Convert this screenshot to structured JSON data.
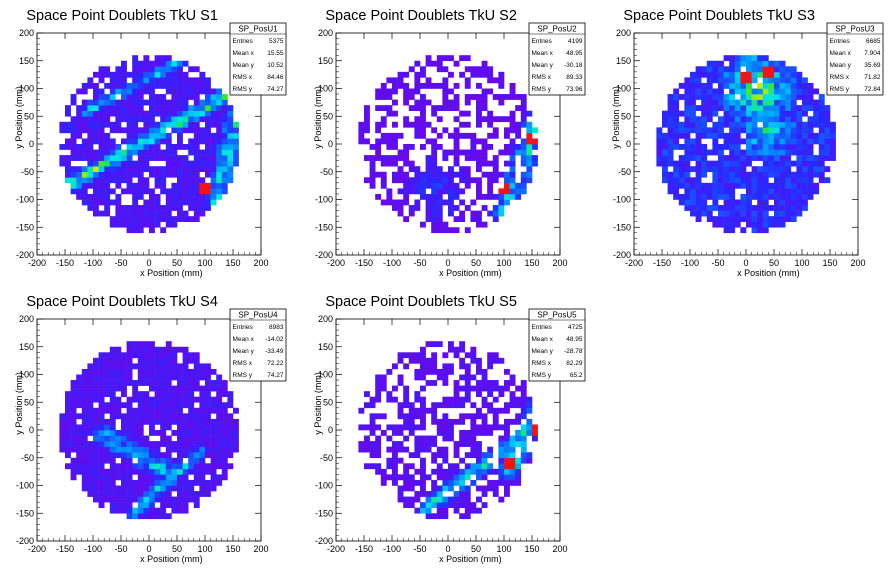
{
  "figure": {
    "panels": [
      {
        "title": "Space Point Doublets TkU S1",
        "stats": {
          "name": "SP_PosU1",
          "rows": [
            [
              "Entries",
              "5375"
            ],
            [
              "Mean x",
              "15.55"
            ],
            [
              "Mean y",
              "10.52"
            ],
            [
              "RMS x",
              "84.46"
            ],
            [
              "RMS y",
              "74.27"
            ]
          ]
        }
      },
      {
        "title": "Space Point Doublets TkU S2",
        "stats": {
          "name": "SP_PosU2",
          "rows": [
            [
              "Entries",
              "4199"
            ],
            [
              "Mean x",
              "48.95"
            ],
            [
              "Mean y",
              "-30.18"
            ],
            [
              "RMS x",
              "89.33"
            ],
            [
              "RMS y",
              "73.96"
            ]
          ]
        }
      },
      {
        "title": "Space Point Doublets TkU S3",
        "stats": {
          "name": "SP_PosU3",
          "rows": [
            [
              "Entries",
              "6685"
            ],
            [
              "Mean x",
              "7.904"
            ],
            [
              "Mean y",
              "35.69"
            ],
            [
              "RMS x",
              "71.82"
            ],
            [
              "RMS y",
              "72.84"
            ]
          ]
        }
      },
      {
        "title": "Space Point Doublets TkU S4",
        "stats": {
          "name": "SP_PosU4",
          "rows": [
            [
              "Entries",
              "8983"
            ],
            [
              "Mean x",
              "-14.02"
            ],
            [
              "Mean y",
              "-33.49"
            ],
            [
              "RMS x",
              "72.22"
            ],
            [
              "RMS y",
              "74.27"
            ]
          ]
        }
      },
      {
        "title": "Space Point Doublets TkU S5",
        "stats": {
          "name": "SP_PosU5",
          "rows": [
            [
              "Entries",
              "4725"
            ],
            [
              "Mean x",
              "48.95"
            ],
            [
              "Mean y",
              "-28.78"
            ],
            [
              "RMS x",
              "82.29"
            ],
            [
              "RMS y",
              "65.2"
            ]
          ]
        }
      }
    ]
  },
  "chart_data": [
    {
      "type": "heatmap",
      "title": "Space Point Doublets TkU S1",
      "xlabel": "x Position (mm)",
      "ylabel": "y Position (mm)",
      "xlim": [
        -200,
        200
      ],
      "ylim": [
        -200,
        200
      ],
      "xticks": [
        -200,
        -150,
        -100,
        -50,
        0,
        50,
        100,
        150,
        200
      ],
      "yticks": [
        -200,
        -150,
        -100,
        -50,
        0,
        50,
        100,
        150,
        200
      ],
      "bin_size": 10,
      "region_radius": 160,
      "fill_fraction": 0.8,
      "base_level": 0.12,
      "features": [
        {
          "kind": "band",
          "from": [
            -140,
            -70
          ],
          "to": [
            160,
            100
          ],
          "width": 16,
          "level": 0.45
        },
        {
          "kind": "band",
          "from": [
            -110,
            60
          ],
          "to": [
            60,
            150
          ],
          "width": 12,
          "level": 0.3
        },
        {
          "kind": "band",
          "from": [
            120,
            -100
          ],
          "to": [
            160,
            60
          ],
          "width": 22,
          "level": 0.35
        }
      ],
      "hot_spots": [
        [
          100,
          -80
        ]
      ],
      "stats": {
        "name": "SP_PosU1",
        "entries": 5375,
        "mean_x": 15.55,
        "mean_y": 10.52,
        "rms_x": 84.46,
        "rms_y": 74.27
      }
    },
    {
      "type": "heatmap",
      "title": "Space Point Doublets TkU S2",
      "xlabel": "x Position (mm)",
      "ylabel": "y Position (mm)",
      "xlim": [
        -200,
        200
      ],
      "ylim": [
        -200,
        200
      ],
      "xticks": [
        -200,
        -150,
        -100,
        -50,
        0,
        50,
        100,
        150,
        200
      ],
      "yticks": [
        -200,
        -150,
        -100,
        -50,
        0,
        50,
        100,
        150,
        200
      ],
      "bin_size": 10,
      "region_radius": 160,
      "fill_fraction": 0.5,
      "base_level": 0.06,
      "features": [
        {
          "kind": "band",
          "from": [
            100,
            -130
          ],
          "to": [
            160,
            40
          ],
          "width": 28,
          "level": 0.4
        },
        {
          "kind": "blob",
          "center": [
            -20,
            -80
          ],
          "radius": 60,
          "level": 0.08
        }
      ],
      "hot_spots": [
        [
          100,
          -80
        ],
        [
          150,
          10
        ]
      ],
      "stats": {
        "name": "SP_PosU2",
        "entries": 4199,
        "mean_x": 48.95,
        "mean_y": -30.18,
        "rms_x": 89.33,
        "rms_y": 73.96
      }
    },
    {
      "type": "heatmap",
      "title": "Space Point Doublets TkU S3",
      "xlabel": "x Position (mm)",
      "ylabel": "y Position (mm)",
      "xlim": [
        -200,
        200
      ],
      "ylim": [
        -200,
        200
      ],
      "xticks": [
        -200,
        -150,
        -100,
        -50,
        0,
        50,
        100,
        150,
        200
      ],
      "yticks": [
        -200,
        -150,
        -100,
        -50,
        0,
        50,
        100,
        150,
        200
      ],
      "bin_size": 10,
      "region_radius": 160,
      "fill_fraction": 0.88,
      "base_level": 0.2,
      "features": [
        {
          "kind": "blob",
          "center": [
            20,
            100
          ],
          "radius": 70,
          "level": 0.45
        },
        {
          "kind": "blob",
          "center": [
            40,
            20
          ],
          "radius": 50,
          "level": 0.3
        }
      ],
      "hot_spots": [
        [
          0,
          120
        ],
        [
          40,
          130
        ]
      ],
      "stats": {
        "name": "SP_PosU3",
        "entries": 6685,
        "mean_x": 7.904,
        "mean_y": 35.69,
        "rms_x": 71.82,
        "rms_y": 72.84
      }
    },
    {
      "type": "heatmap",
      "title": "Space Point Doublets TkU S4",
      "xlabel": "x Position (mm)",
      "ylabel": "y Position (mm)",
      "xlim": [
        -200,
        200
      ],
      "ylim": [
        -200,
        200
      ],
      "xticks": [
        -200,
        -150,
        -100,
        -50,
        0,
        50,
        100,
        150,
        200
      ],
      "yticks": [
        -200,
        -150,
        -100,
        -50,
        0,
        50,
        100,
        150,
        200
      ],
      "bin_size": 10,
      "region_radius": 160,
      "fill_fraction": 0.86,
      "base_level": 0.1,
      "features": [
        {
          "kind": "band",
          "from": [
            -80,
            -10
          ],
          "to": [
            40,
            -80
          ],
          "width": 22,
          "level": 0.3
        },
        {
          "kind": "band",
          "from": [
            -30,
            -150
          ],
          "to": [
            90,
            -40
          ],
          "width": 14,
          "level": 0.35
        }
      ],
      "hot_spots": [],
      "stats": {
        "name": "SP_PosU4",
        "entries": 8983,
        "mean_x": -14.02,
        "mean_y": -33.49,
        "rms_x": 72.22,
        "rms_y": 74.27
      }
    },
    {
      "type": "heatmap",
      "title": "Space Point Doublets TkU S5",
      "xlabel": "x Position (mm)",
      "ylabel": "y Position (mm)",
      "xlim": [
        -200,
        200
      ],
      "ylim": [
        -200,
        200
      ],
      "xticks": [
        -200,
        -150,
        -100,
        -50,
        0,
        50,
        100,
        150,
        200
      ],
      "yticks": [
        -200,
        -150,
        -100,
        -50,
        0,
        50,
        100,
        150,
        200
      ],
      "bin_size": 10,
      "region_radius": 160,
      "fill_fraction": 0.55,
      "base_level": 0.08,
      "features": [
        {
          "kind": "band",
          "from": [
            -40,
            -140
          ],
          "to": [
            150,
            0
          ],
          "width": 18,
          "level": 0.4
        },
        {
          "kind": "band",
          "from": [
            110,
            -70
          ],
          "to": [
            160,
            40
          ],
          "width": 24,
          "level": 0.45
        }
      ],
      "hot_spots": [
        [
          110,
          -60
        ],
        [
          155,
          0
        ]
      ],
      "stats": {
        "name": "SP_PosU5",
        "entries": 4725,
        "mean_x": 48.95,
        "mean_y": -28.78,
        "rms_x": 82.29,
        "rms_y": 65.2
      }
    }
  ]
}
